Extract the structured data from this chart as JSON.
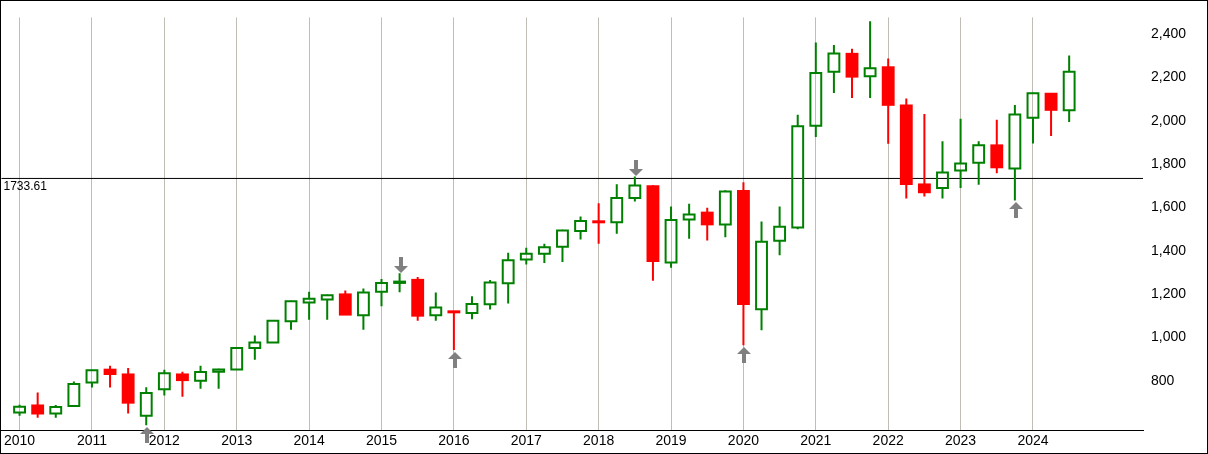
{
  "chart_data": {
    "type": "candlestick",
    "x": [
      2010,
      2010.25,
      2010.5,
      2010.75,
      2011,
      2011.25,
      2011.5,
      2011.75,
      2012,
      2012.25,
      2012.5,
      2012.75,
      2013,
      2013.25,
      2013.5,
      2013.75,
      2014,
      2014.25,
      2014.5,
      2014.75,
      2015,
      2015.25,
      2015.5,
      2015.75,
      2016,
      2016.25,
      2016.5,
      2016.75,
      2017,
      2017.25,
      2017.5,
      2017.75,
      2018,
      2018.25,
      2018.5,
      2018.75,
      2019,
      2019.25,
      2019.5,
      2019.75,
      2020,
      2020.25,
      2020.5,
      2020.75,
      2021,
      2021.25,
      2021.5,
      2021.75,
      2022,
      2022.25,
      2022.5,
      2022.75,
      2023,
      2023.25,
      2023.5,
      2023.75,
      2024,
      2024.25,
      2024.5
    ],
    "ohlc": [
      [
        655,
        690,
        640,
        681
      ],
      [
        687,
        747,
        630,
        650
      ],
      [
        650,
        689,
        630,
        680
      ],
      [
        685,
        797,
        680,
        786
      ],
      [
        793,
        852,
        770,
        849
      ],
      [
        852,
        870,
        770,
        832
      ],
      [
        830,
        860,
        650,
        700
      ],
      [
        640,
        771,
        596,
        745
      ],
      [
        762,
        852,
        733,
        836
      ],
      [
        830,
        843,
        727,
        804
      ],
      [
        801,
        870,
        764,
        841
      ],
      [
        843,
        856,
        764,
        853
      ],
      [
        853,
        955,
        850,
        952
      ],
      [
        952,
        1009,
        898,
        977
      ],
      [
        977,
        1080,
        975,
        1078
      ],
      [
        1075,
        1170,
        1036,
        1168
      ],
      [
        1162,
        1211,
        1082,
        1179
      ],
      [
        1176,
        1197,
        1082,
        1195
      ],
      [
        1199,
        1217,
        1104,
        1106
      ],
      [
        1103,
        1226,
        1036,
        1208
      ],
      [
        1211,
        1270,
        1144,
        1252
      ],
      [
        1252,
        1297,
        1209,
        1258
      ],
      [
        1266,
        1279,
        1078,
        1101
      ],
      [
        1103,
        1208,
        1078,
        1139
      ],
      [
        1121,
        1123,
        943,
        1117
      ],
      [
        1113,
        1190,
        1085,
        1155
      ],
      [
        1154,
        1265,
        1130,
        1254
      ],
      [
        1251,
        1391,
        1157,
        1356
      ],
      [
        1360,
        1414,
        1337,
        1387
      ],
      [
        1387,
        1432,
        1344,
        1416
      ],
      [
        1419,
        1497,
        1348,
        1494
      ],
      [
        1491,
        1558,
        1452,
        1537
      ],
      [
        1536,
        1619,
        1433,
        1533
      ],
      [
        1532,
        1707,
        1479,
        1644
      ],
      [
        1643,
        1743,
        1627,
        1701
      ],
      [
        1698,
        1702,
        1262,
        1353
      ],
      [
        1346,
        1604,
        1322,
        1542
      ],
      [
        1544,
        1617,
        1456,
        1567
      ],
      [
        1576,
        1599,
        1448,
        1522
      ],
      [
        1521,
        1679,
        1463,
        1673
      ],
      [
        1676,
        1716,
        965,
        1155
      ],
      [
        1131,
        1535,
        1034,
        1442
      ],
      [
        1446,
        1604,
        1380,
        1511
      ],
      [
        1508,
        2027,
        1499,
        1974
      ],
      [
        1977,
        2360,
        1925,
        2220
      ],
      [
        2225,
        2349,
        2127,
        2310
      ],
      [
        2308,
        2331,
        2104,
        2203
      ],
      [
        2205,
        2458,
        2104,
        2242
      ],
      [
        2246,
        2286,
        1893,
        2073
      ],
      [
        2070,
        2102,
        1641,
        1708
      ],
      [
        1706,
        2031,
        1650,
        1670
      ],
      [
        1690,
        1905,
        1641,
        1761
      ],
      [
        1770,
        2009,
        1690,
        1802
      ],
      [
        1806,
        1905,
        1704,
        1887
      ],
      [
        1886,
        2004,
        1757,
        1785
      ],
      [
        1779,
        2072,
        1632,
        2028
      ],
      [
        2013,
        2129,
        1895,
        2126
      ],
      [
        2124,
        2126,
        1929,
        2050
      ],
      [
        2048,
        2300,
        1994,
        2225
      ]
    ],
    "colors": [
      "#008000",
      "#ff0000",
      "#008000",
      "#008000",
      "#008000",
      "#ff0000",
      "#ff0000",
      "#008000",
      "#008000",
      "#ff0000",
      "#008000",
      "#008000",
      "#008000",
      "#008000",
      "#008000",
      "#008000",
      "#008000",
      "#008000",
      "#ff0000",
      "#008000",
      "#008000",
      "#008000",
      "#ff0000",
      "#008000",
      "#ff0000",
      "#008000",
      "#008000",
      "#008000",
      "#008000",
      "#008000",
      "#008000",
      "#008000",
      "#ff0000",
      "#008000",
      "#008000",
      "#ff0000",
      "#008000",
      "#008000",
      "#ff0000",
      "#008000",
      "#ff0000",
      "#008000",
      "#008000",
      "#008000",
      "#008000",
      "#008000",
      "#ff0000",
      "#008000",
      "#ff0000",
      "#ff0000",
      "#ff0000",
      "#008000",
      "#008000",
      "#008000",
      "#ff0000",
      "#008000",
      "#008000",
      "#ff0000",
      "#008000"
    ],
    "xlim": [
      2009.75,
      2025.52
    ],
    "xticks": [
      2010,
      2011,
      2012,
      2013,
      2014,
      2015,
      2016,
      2017,
      2018,
      2019,
      2020,
      2021,
      2022,
      2023,
      2024
    ],
    "ylim": [
      573,
      2476
    ],
    "yticks": [
      800,
      {
        "value": 1000,
        "label": "1,000"
      },
      {
        "value": 1200,
        "label": "1,200"
      },
      {
        "value": 1400,
        "label": "1,400"
      },
      {
        "value": 1600,
        "label": "1,600"
      },
      {
        "value": 1800,
        "label": "1,800"
      },
      {
        "value": 2000,
        "label": "2,000"
      },
      {
        "value": 2200,
        "label": "2,200"
      },
      {
        "value": 2400,
        "label": "2,400"
      }
    ],
    "grid": "x",
    "legend": false,
    "ref_lines": [
      {
        "axis": "y",
        "value": 1733.61,
        "label": "1733.61",
        "color": "#000000"
      }
    ]
  }
}
